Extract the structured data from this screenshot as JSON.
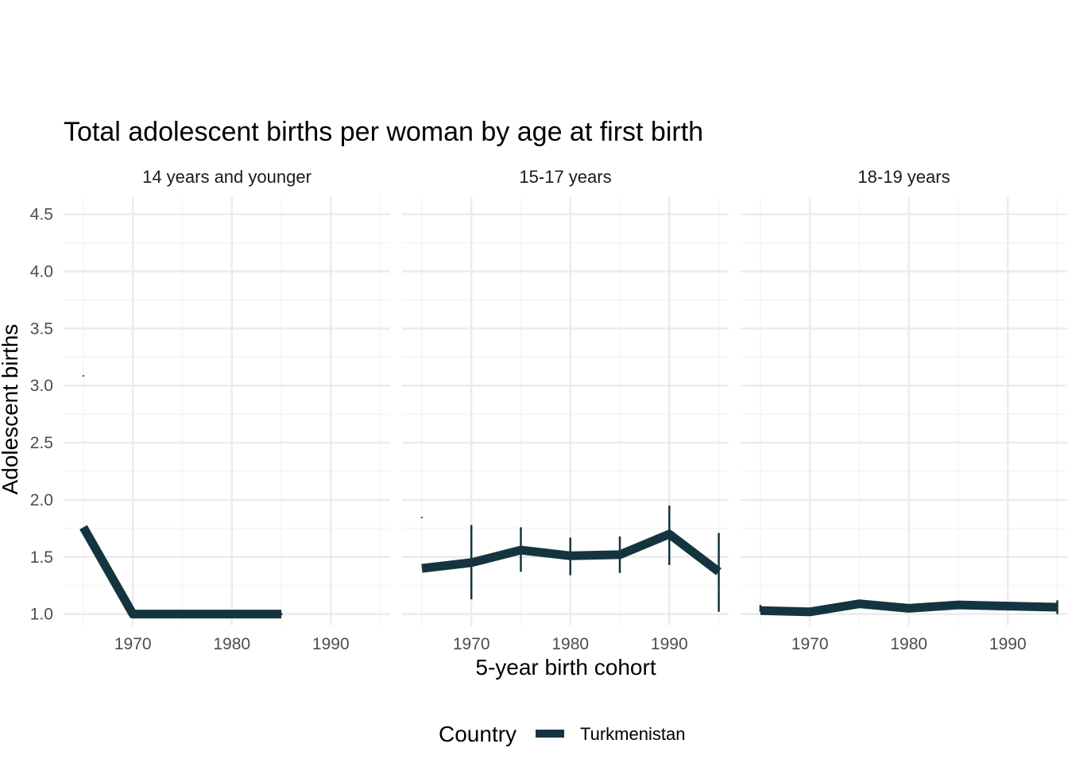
{
  "chart_data": {
    "type": "line",
    "title": "Total adolescent births per woman by age at first birth",
    "xlabel": "5-year birth cohort",
    "ylabel": "Adolescent births",
    "xlim": [
      1963,
      1996
    ],
    "ylim": [
      0.9,
      4.65
    ],
    "x_ticks": [
      1970,
      1980,
      1990
    ],
    "y_ticks": [
      1.0,
      1.5,
      2.0,
      2.5,
      3.0,
      3.5,
      4.0,
      4.5
    ],
    "y_tick_labels": [
      "1.0",
      "1.5",
      "2.0",
      "2.5",
      "3.0",
      "3.5",
      "4.0",
      "4.5"
    ],
    "line_color": "#14353f",
    "legend": {
      "title": "Country",
      "entries": [
        "Turkmenistan"
      ],
      "position": "bottom"
    },
    "panels": [
      {
        "label": "14 years and younger",
        "series": [
          {
            "name": "Turkmenistan",
            "x": [
              1965,
              1970,
              1975,
              1980,
              1985
            ],
            "y": [
              1.76,
              1.0,
              1.0,
              1.0,
              1.0
            ]
          }
        ],
        "error_bars": [
          {
            "x": 1965,
            "low": 3.08,
            "high": 3.09
          },
          {
            "x": 1985,
            "low": 0.99,
            "high": 1.01
          }
        ]
      },
      {
        "label": "15-17 years",
        "series": [
          {
            "name": "Turkmenistan",
            "x": [
              1965,
              1970,
              1975,
              1980,
              1985,
              1990,
              1995
            ],
            "y": [
              1.4,
              1.45,
              1.56,
              1.51,
              1.52,
              1.7,
              1.37
            ]
          }
        ],
        "error_bars": [
          {
            "x": 1965,
            "low": 1.84,
            "high": 1.85
          },
          {
            "x": 1970,
            "low": 1.13,
            "high": 1.78
          },
          {
            "x": 1975,
            "low": 1.37,
            "high": 1.76
          },
          {
            "x": 1980,
            "low": 1.34,
            "high": 1.67
          },
          {
            "x": 1985,
            "low": 1.36,
            "high": 1.68
          },
          {
            "x": 1990,
            "low": 1.43,
            "high": 1.95
          },
          {
            "x": 1995,
            "low": 1.02,
            "high": 1.71
          }
        ]
      },
      {
        "label": "18-19 years",
        "series": [
          {
            "name": "Turkmenistan",
            "x": [
              1965,
              1970,
              1975,
              1980,
              1985,
              1990,
              1995
            ],
            "y": [
              1.03,
              1.02,
              1.09,
              1.05,
              1.08,
              1.07,
              1.06
            ]
          }
        ],
        "error_bars": [
          {
            "x": 1965,
            "low": 1.02,
            "high": 1.08
          },
          {
            "x": 1975,
            "low": 1.07,
            "high": 1.12
          },
          {
            "x": 1980,
            "low": 1.04,
            "high": 1.07
          },
          {
            "x": 1985,
            "low": 1.06,
            "high": 1.11
          },
          {
            "x": 1995,
            "low": 1.0,
            "high": 1.12
          }
        ]
      }
    ]
  }
}
